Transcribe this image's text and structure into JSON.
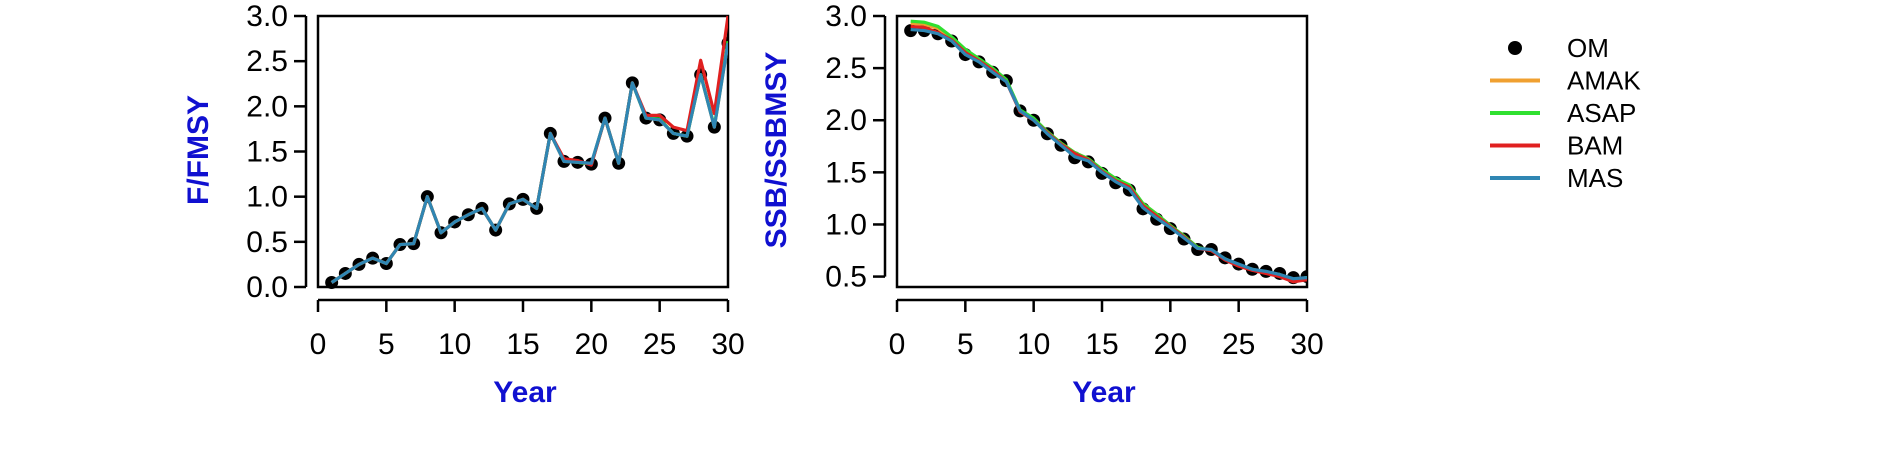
{
  "colors": {
    "axis_title": "#1010d0",
    "OM": "#000000",
    "AMAK": "#f0a030",
    "ASAP": "#30e030",
    "BAM": "#e02020",
    "MAS": "#2f86b3"
  },
  "legend": {
    "items": [
      {
        "label": "OM",
        "kind": "point",
        "color_key": "OM"
      },
      {
        "label": "AMAK",
        "kind": "line",
        "color_key": "AMAK"
      },
      {
        "label": "ASAP",
        "kind": "line",
        "color_key": "ASAP"
      },
      {
        "label": "BAM",
        "kind": "line",
        "color_key": "BAM"
      },
      {
        "label": "MAS",
        "kind": "line",
        "color_key": "MAS"
      }
    ]
  },
  "chart_data": [
    {
      "type": "line",
      "xlabel": "Year",
      "ylabel": "F/FMSY",
      "xlim": [
        0,
        30
      ],
      "ylim": [
        0,
        3
      ],
      "xticks": [
        0,
        5,
        10,
        15,
        20,
        25,
        30
      ],
      "yticks": [
        0.0,
        0.5,
        1.0,
        1.5,
        2.0,
        2.5,
        3.0
      ],
      "ytick_labels": [
        "0.0",
        "0.5",
        "1.0",
        "1.5",
        "2.0",
        "2.5",
        "3.0"
      ],
      "x": [
        1,
        2,
        3,
        4,
        5,
        6,
        7,
        8,
        9,
        10,
        11,
        12,
        13,
        14,
        15,
        16,
        17,
        18,
        19,
        20,
        21,
        22,
        23,
        24,
        25,
        26,
        27,
        28,
        29,
        30
      ],
      "points": {
        "name": "OM",
        "values": [
          0.05,
          0.15,
          0.25,
          0.32,
          0.26,
          0.47,
          0.48,
          1.0,
          0.6,
          0.72,
          0.8,
          0.87,
          0.63,
          0.92,
          0.97,
          0.87,
          1.7,
          1.39,
          1.38,
          1.36,
          1.87,
          1.37,
          2.26,
          1.87,
          1.85,
          1.7,
          1.67,
          2.35,
          1.77,
          2.7
        ]
      },
      "series": [
        {
          "name": "AMAK",
          "values": [
            0.05,
            0.15,
            0.25,
            0.32,
            0.26,
            0.47,
            0.48,
            1.0,
            0.6,
            0.72,
            0.8,
            0.87,
            0.63,
            0.92,
            0.97,
            0.87,
            1.7,
            1.39,
            1.38,
            1.36,
            1.87,
            1.37,
            2.26,
            1.87,
            1.85,
            1.7,
            1.67,
            2.35,
            1.77,
            2.7
          ]
        },
        {
          "name": "ASAP",
          "values": [
            0.05,
            0.15,
            0.25,
            0.32,
            0.26,
            0.47,
            0.48,
            1.0,
            0.6,
            0.72,
            0.8,
            0.87,
            0.63,
            0.92,
            0.97,
            0.87,
            1.7,
            1.4,
            1.38,
            1.36,
            1.87,
            1.37,
            2.26,
            1.87,
            1.86,
            1.7,
            1.67,
            2.35,
            1.78,
            2.72
          ]
        },
        {
          "name": "BAM",
          "values": [
            0.05,
            0.15,
            0.25,
            0.32,
            0.26,
            0.47,
            0.48,
            1.0,
            0.6,
            0.72,
            0.8,
            0.87,
            0.63,
            0.92,
            0.97,
            0.87,
            1.7,
            1.42,
            1.4,
            1.35,
            1.87,
            1.37,
            2.26,
            1.9,
            1.9,
            1.77,
            1.73,
            2.51,
            1.92,
            3.0
          ]
        },
        {
          "name": "MAS",
          "values": [
            0.05,
            0.15,
            0.25,
            0.32,
            0.26,
            0.47,
            0.48,
            1.0,
            0.6,
            0.72,
            0.8,
            0.87,
            0.63,
            0.92,
            0.97,
            0.87,
            1.7,
            1.39,
            1.38,
            1.37,
            1.87,
            1.37,
            2.26,
            1.87,
            1.85,
            1.7,
            1.67,
            2.35,
            1.77,
            2.7
          ]
        }
      ]
    },
    {
      "type": "line",
      "xlabel": "Year",
      "ylabel": "SSB/SSBMSY",
      "xlim": [
        0,
        30
      ],
      "ylim": [
        0.4,
        3.0
      ],
      "xticks": [
        0,
        5,
        10,
        15,
        20,
        25,
        30
      ],
      "yticks": [
        0.5,
        1.0,
        1.5,
        2.0,
        2.5,
        3.0
      ],
      "ytick_labels": [
        "0.5",
        "1.0",
        "1.5",
        "2.0",
        "2.5",
        "3.0"
      ],
      "x": [
        1,
        2,
        3,
        4,
        5,
        6,
        7,
        8,
        9,
        10,
        11,
        12,
        13,
        14,
        15,
        16,
        17,
        18,
        19,
        20,
        21,
        22,
        23,
        24,
        25,
        26,
        27,
        28,
        29,
        30
      ],
      "points": {
        "name": "OM",
        "values": [
          2.86,
          2.86,
          2.83,
          2.76,
          2.63,
          2.56,
          2.46,
          2.38,
          2.09,
          2.0,
          1.87,
          1.76,
          1.64,
          1.6,
          1.49,
          1.4,
          1.33,
          1.15,
          1.05,
          0.96,
          0.86,
          0.76,
          0.76,
          0.68,
          0.62,
          0.57,
          0.55,
          0.53,
          0.49,
          0.5
        ]
      },
      "series": [
        {
          "name": "AMAK",
          "values": [
            2.93,
            2.92,
            2.88,
            2.79,
            2.67,
            2.58,
            2.49,
            2.38,
            2.09,
            2.01,
            1.89,
            1.78,
            1.69,
            1.63,
            1.52,
            1.43,
            1.37,
            1.2,
            1.1,
            0.99,
            0.89,
            0.78,
            0.75,
            0.67,
            0.61,
            0.57,
            0.54,
            0.52,
            0.47,
            0.49
          ]
        },
        {
          "name": "ASAP",
          "values": [
            2.95,
            2.94,
            2.9,
            2.8,
            2.68,
            2.59,
            2.5,
            2.39,
            2.1,
            2.02,
            1.89,
            1.78,
            1.69,
            1.63,
            1.53,
            1.44,
            1.38,
            1.2,
            1.1,
            0.99,
            0.89,
            0.78,
            0.75,
            0.67,
            0.61,
            0.57,
            0.54,
            0.52,
            0.47,
            0.49
          ]
        },
        {
          "name": "BAM",
          "values": [
            2.9,
            2.89,
            2.84,
            2.77,
            2.65,
            2.57,
            2.48,
            2.37,
            2.08,
            2.0,
            1.88,
            1.77,
            1.68,
            1.62,
            1.51,
            1.42,
            1.36,
            1.18,
            1.08,
            0.98,
            0.88,
            0.77,
            0.75,
            0.66,
            0.6,
            0.56,
            0.53,
            0.5,
            0.45,
            0.47
          ]
        },
        {
          "name": "MAS",
          "values": [
            2.87,
            2.86,
            2.83,
            2.76,
            2.63,
            2.56,
            2.46,
            2.37,
            2.09,
            2.0,
            1.87,
            1.76,
            1.65,
            1.61,
            1.5,
            1.41,
            1.34,
            1.16,
            1.06,
            0.97,
            0.87,
            0.77,
            0.76,
            0.67,
            0.62,
            0.57,
            0.55,
            0.52,
            0.48,
            0.49
          ]
        }
      ]
    }
  ]
}
